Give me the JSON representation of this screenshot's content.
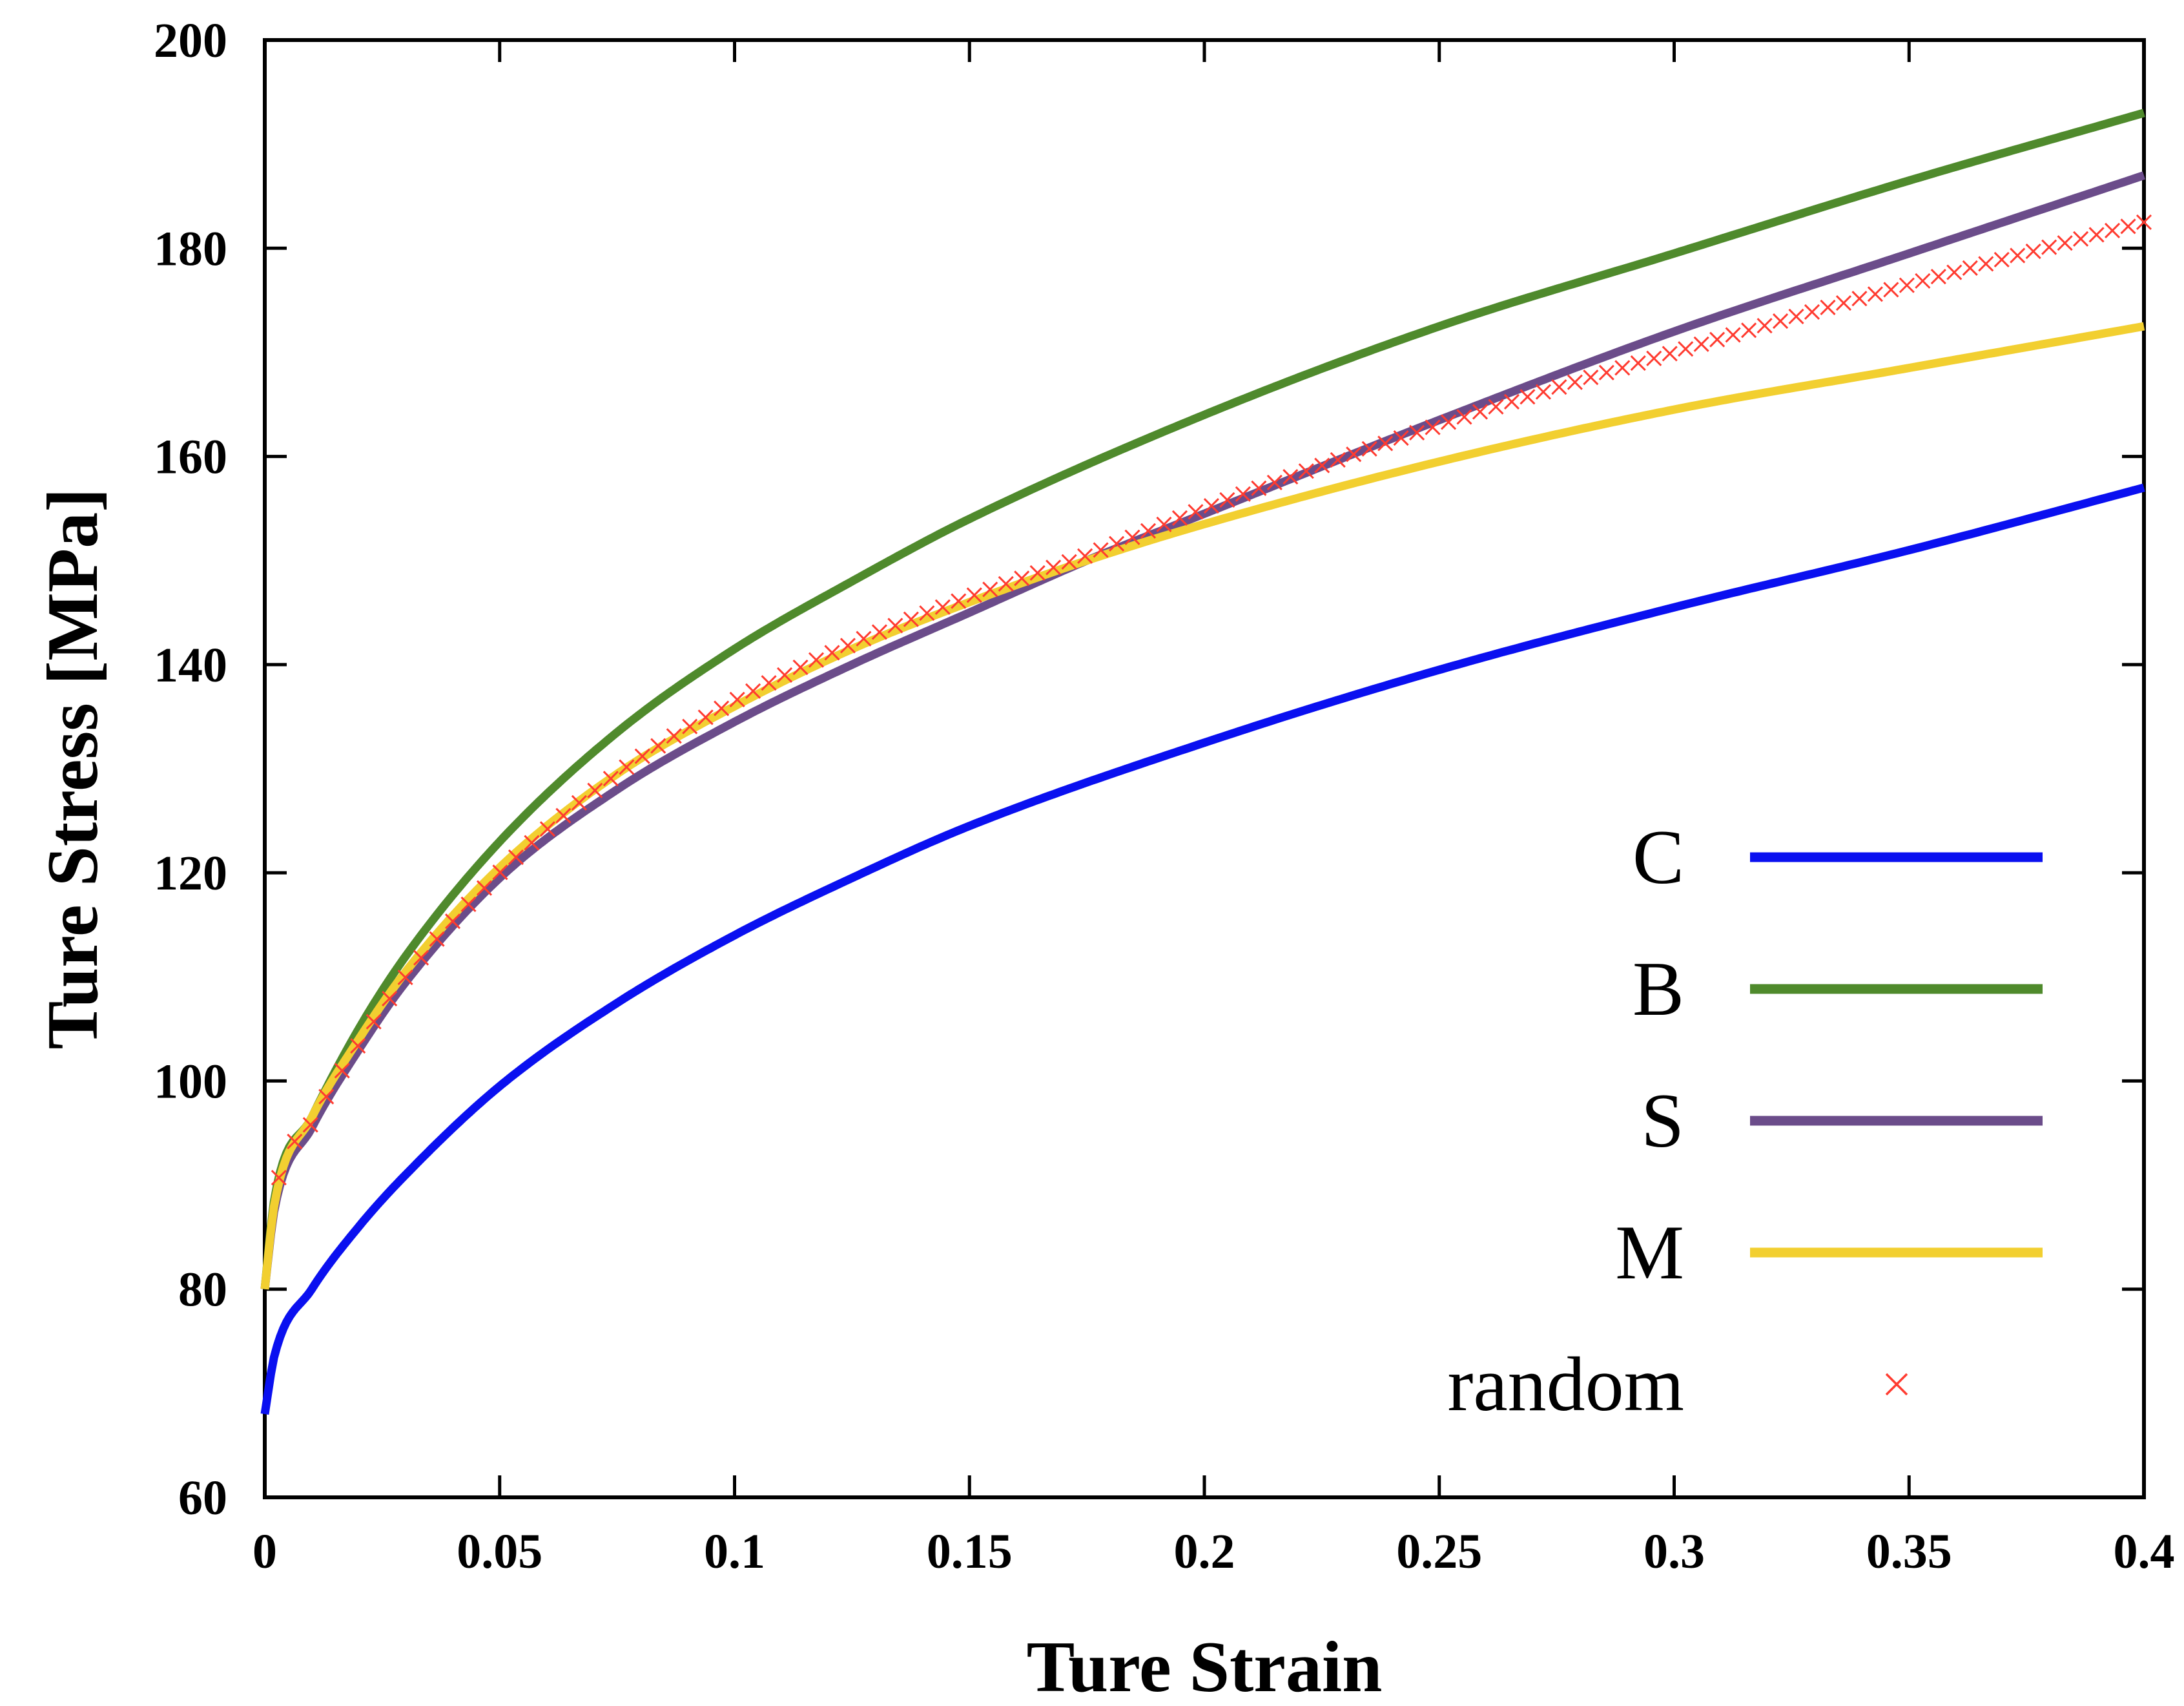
{
  "chart_data": {
    "type": "line",
    "title": "",
    "xlabel": "Ture Strain",
    "ylabel": "Ture Stress [MPa]",
    "xlim": [
      0,
      0.4
    ],
    "ylim": [
      60,
      200
    ],
    "x_ticks": [
      0,
      0.05,
      0.1,
      0.15,
      0.2,
      0.25,
      0.3,
      0.35,
      0.4
    ],
    "x_tick_labels": [
      "0",
      "0.05",
      "0.1",
      "0.15",
      "0.2",
      "0.25",
      "0.3",
      "0.35",
      "0.4"
    ],
    "y_ticks": [
      60,
      80,
      100,
      120,
      140,
      160,
      180,
      200
    ],
    "y_tick_labels": [
      "60",
      "80",
      "100",
      "120",
      "140",
      "160",
      "180",
      "200"
    ],
    "grid": false,
    "legend_position": "lower-right",
    "series": [
      {
        "name": "C",
        "style": "line",
        "color": "#0a10f0",
        "x": [
          0,
          0.002,
          0.01,
          0.02,
          0.03,
          0.05,
          0.075,
          0.1,
          0.125,
          0.15,
          0.2,
          0.25,
          0.3,
          0.35,
          0.4
        ],
        "values": [
          68,
          73.5,
          80,
          86,
          91,
          99.5,
          107.5,
          114,
          119.5,
          124.5,
          132.5,
          139.5,
          145.5,
          151,
          157
        ]
      },
      {
        "name": "B",
        "style": "line",
        "color": "#4f8a2c",
        "x": [
          0,
          0.002,
          0.01,
          0.02,
          0.03,
          0.05,
          0.075,
          0.1,
          0.125,
          0.15,
          0.2,
          0.25,
          0.3,
          0.35,
          0.4
        ],
        "values": [
          80,
          88.5,
          96.5,
          105,
          112,
          123,
          133.5,
          141.5,
          148,
          154,
          164,
          172.5,
          179.5,
          186.5,
          193
        ]
      },
      {
        "name": "S",
        "style": "line",
        "color": "#6b4c8a",
        "x": [
          0,
          0.002,
          0.01,
          0.02,
          0.03,
          0.05,
          0.075,
          0.1,
          0.125,
          0.15,
          0.175,
          0.2,
          0.25,
          0.3,
          0.35,
          0.4
        ],
        "values": [
          80,
          87.5,
          95.5,
          103,
          109.5,
          119.5,
          128,
          134.5,
          140,
          145,
          150,
          154.5,
          163.5,
          172,
          179.5,
          187
        ]
      },
      {
        "name": "M",
        "style": "line",
        "color": "#f2cf30",
        "x": [
          0,
          0.002,
          0.01,
          0.02,
          0.03,
          0.05,
          0.075,
          0.1,
          0.125,
          0.15,
          0.175,
          0.2,
          0.25,
          0.3,
          0.35,
          0.4
        ],
        "values": [
          80,
          88,
          96.5,
          104,
          110.5,
          120.5,
          129.5,
          136,
          141.5,
          146,
          150,
          153.5,
          159.5,
          164.5,
          168.5,
          172.5
        ]
      },
      {
        "name": "random",
        "style": "markers",
        "color": "#ff3b30",
        "x": [
          0,
          0.002,
          0.01,
          0.02,
          0.03,
          0.05,
          0.075,
          0.1,
          0.125,
          0.15,
          0.175,
          0.2,
          0.25,
          0.3,
          0.35,
          0.4
        ],
        "values": [
          80,
          88.5,
          96,
          103.5,
          110,
          120,
          129.5,
          136.5,
          142,
          146.5,
          150.5,
          155,
          163,
          170,
          176.5,
          182.5
        ]
      }
    ]
  }
}
